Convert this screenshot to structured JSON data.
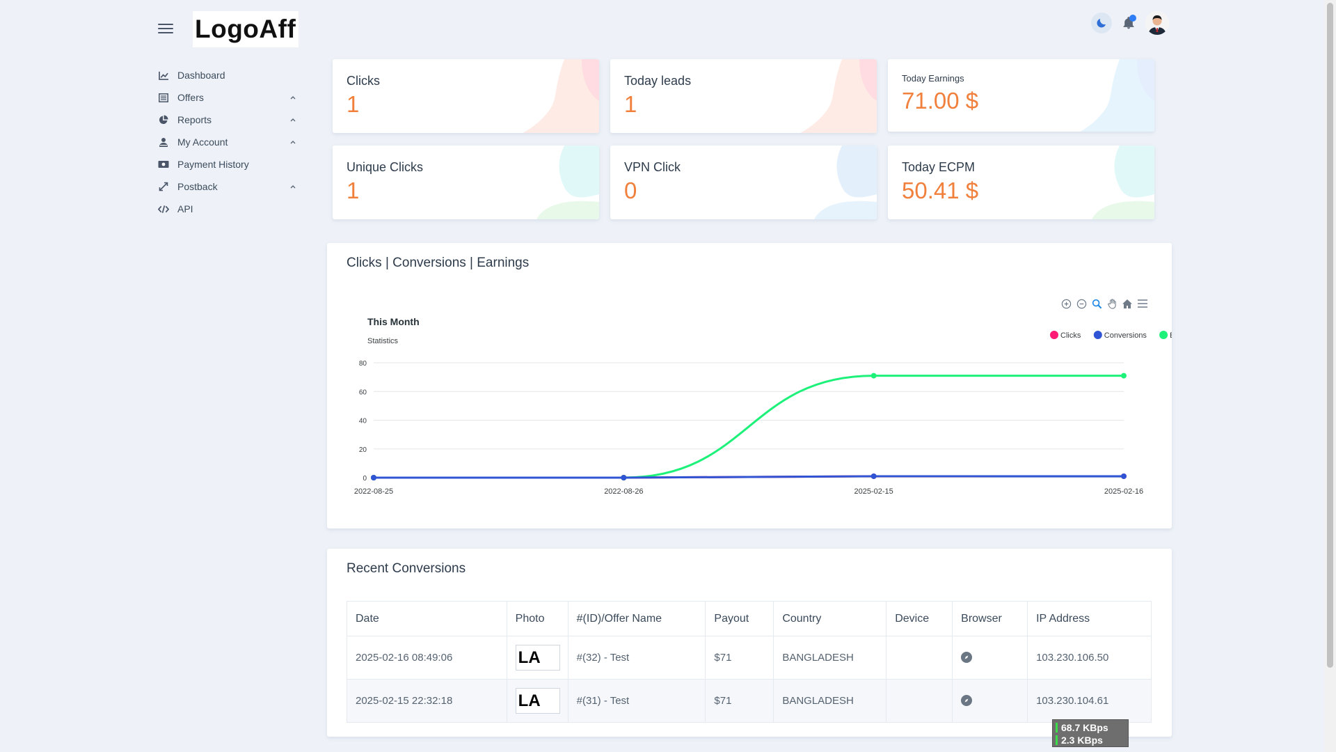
{
  "header": {
    "logo_text": "LogoAff"
  },
  "sidebar": {
    "items": [
      {
        "label": "Dashboard",
        "icon": "chart-line-icon",
        "expandable": false
      },
      {
        "label": "Offers",
        "icon": "list-icon",
        "expandable": true
      },
      {
        "label": "Reports",
        "icon": "pie-chart-icon",
        "expandable": true
      },
      {
        "label": "My Account",
        "icon": "user-icon",
        "expandable": true
      },
      {
        "label": "Payment History",
        "icon": "money-icon",
        "expandable": false
      },
      {
        "label": "Postback",
        "icon": "expand-arrows-icon",
        "expandable": true
      },
      {
        "label": "API",
        "icon": "code-icon",
        "expandable": false
      }
    ]
  },
  "stats": {
    "clicks": {
      "title": "Clicks",
      "value": "1"
    },
    "today_leads": {
      "title": "Today leads",
      "value": "1"
    },
    "today_earnings": {
      "title": "Today Earnings",
      "value": "71.00 $"
    },
    "unique_clicks": {
      "title": "Unique Clicks",
      "value": "1"
    },
    "vpn_click": {
      "title": "VPN Click",
      "value": "0"
    },
    "today_ecpm": {
      "title": "Today ECPM",
      "value": "50.41 $"
    }
  },
  "chart_section": {
    "title": "Clicks | Conversions | Earnings"
  },
  "chart_data": {
    "type": "line",
    "title": "This Month",
    "subtitle": "Statistics",
    "categories": [
      "2022-08-25",
      "2022-08-26",
      "2025-02-15",
      "2025-02-16"
    ],
    "series": [
      {
        "name": "Clicks",
        "color": "#ff1a75",
        "values": [
          0,
          0,
          1,
          1
        ]
      },
      {
        "name": "Conversions",
        "color": "#2f55d4",
        "values": [
          0,
          0,
          1,
          1
        ]
      },
      {
        "name": "Earnings",
        "color": "#1df17a",
        "values": [
          0,
          0,
          71,
          71
        ]
      }
    ],
    "ylim": [
      0,
      80
    ],
    "yticks": [
      "0",
      "20",
      "40",
      "60",
      "80"
    ],
    "legend_position": "top-right"
  },
  "conversions": {
    "title": "Recent Conversions",
    "columns": [
      "Date",
      "Photo",
      "#(ID)/Offer Name",
      "Payout",
      "Country",
      "Device",
      "Browser",
      "IP Address"
    ],
    "rows": [
      {
        "date": "2025-02-16 08:49:06",
        "photo": "LA",
        "offer": "#(32) - Test",
        "payout": "$71",
        "country": "BANGLADESH",
        "device": "",
        "ip": "103.230.106.50"
      },
      {
        "date": "2025-02-15 22:32:18",
        "photo": "LA",
        "offer": "#(31) - Test",
        "payout": "$71",
        "country": "BANGLADESH",
        "device": "",
        "ip": "103.230.104.61"
      }
    ]
  },
  "speed_overlay": {
    "down": "68.7 KBps",
    "up": "2.3 KBps"
  }
}
